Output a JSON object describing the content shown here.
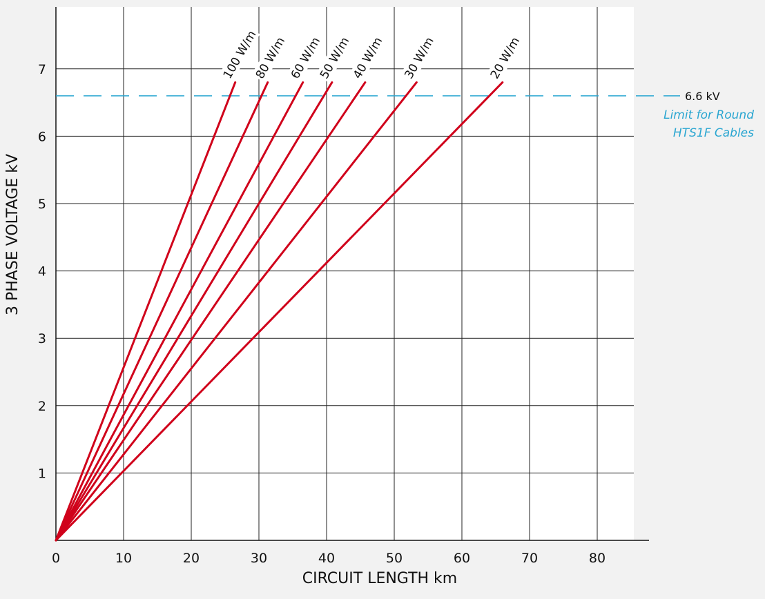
{
  "colors": {
    "background": "#f2f2f2",
    "plot_area": "#ffffff",
    "grid": "#222222",
    "series": "#d0021b",
    "limit": "#2aa6d1"
  },
  "chart_data": {
    "type": "line",
    "xlabel": "CIRCUIT LENGTH km",
    "ylabel": "3 PHASE VOLTAGE kV",
    "xlim": [
      0,
      85
    ],
    "ylim": [
      0,
      7.8
    ],
    "xticks": [
      0,
      10,
      20,
      30,
      40,
      50,
      60,
      70,
      80
    ],
    "yticks": [
      1,
      2,
      3,
      4,
      5,
      6,
      7
    ],
    "grid": true,
    "series": [
      {
        "name": "100 W/m",
        "x": [
          0,
          26.5
        ],
        "y": [
          0,
          6.8
        ]
      },
      {
        "name": "80 W/m",
        "x": [
          0,
          31.3
        ],
        "y": [
          0,
          6.8
        ]
      },
      {
        "name": "60 W/m",
        "x": [
          0,
          36.5
        ],
        "y": [
          0,
          6.8
        ]
      },
      {
        "name": "50 W/m",
        "x": [
          0,
          40.8
        ],
        "y": [
          0,
          6.8
        ]
      },
      {
        "name": "40 W/m",
        "x": [
          0,
          45.7
        ],
        "y": [
          0,
          6.8
        ]
      },
      {
        "name": "30 W/m",
        "x": [
          0,
          53.3
        ],
        "y": [
          0,
          6.8
        ]
      },
      {
        "name": "20 W/m",
        "x": [
          0,
          66.0
        ],
        "y": [
          0,
          6.8
        ]
      }
    ],
    "annotations": [
      {
        "type": "hline",
        "y": 6.6,
        "value_label": "6.6 kV",
        "note_lines": [
          "Limit for Round",
          "HTS1F Cables"
        ],
        "style": "dashed"
      }
    ]
  }
}
